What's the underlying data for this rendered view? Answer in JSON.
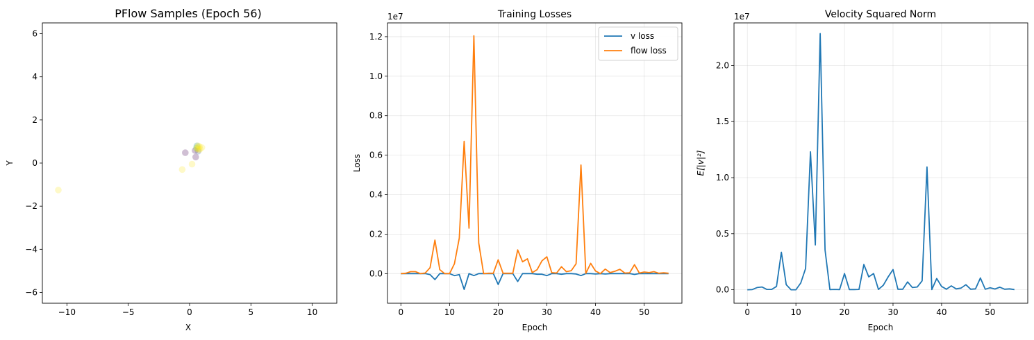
{
  "chart_data": [
    {
      "type": "scatter",
      "title": "PFlow Samples (Epoch 56)",
      "xlabel": "X",
      "ylabel": "Y",
      "xlim": [
        -12,
        12
      ],
      "ylim": [
        -6.5,
        6.5
      ],
      "xticks": [
        -10,
        -5,
        0,
        5,
        10
      ],
      "yticks": [
        -6,
        -4,
        -2,
        0,
        2,
        4,
        6
      ],
      "grid": false,
      "points": [
        {
          "x": -10.7,
          "y": -1.25,
          "color": "#fde725"
        },
        {
          "x": -0.6,
          "y": -0.3,
          "color": "#fde725"
        },
        {
          "x": 0.2,
          "y": -0.05,
          "color": "#fde725"
        },
        {
          "x": -0.35,
          "y": 0.48,
          "color": "#440154"
        },
        {
          "x": 0.5,
          "y": 0.28,
          "color": "#440154"
        },
        {
          "x": 0.45,
          "y": 0.58,
          "color": "#440154"
        },
        {
          "x": 0.6,
          "y": 0.8,
          "color": "#21918c"
        },
        {
          "x": 0.7,
          "y": 0.55,
          "color": "#3b528b"
        },
        {
          "x": 0.55,
          "y": 0.7,
          "color": "#5ec962"
        },
        {
          "x": 0.85,
          "y": 0.65,
          "color": "#fde725"
        },
        {
          "x": 0.65,
          "y": 0.72,
          "color": "#fde725"
        },
        {
          "x": 0.75,
          "y": 0.62,
          "color": "#fde725"
        },
        {
          "x": 0.6,
          "y": 0.66,
          "color": "#fde725"
        },
        {
          "x": 0.8,
          "y": 0.76,
          "color": "#fde725"
        },
        {
          "x": 1.0,
          "y": 0.72,
          "color": "#fde725"
        },
        {
          "x": 0.7,
          "y": 0.8,
          "color": "#fde725"
        }
      ]
    },
    {
      "type": "line",
      "title": "Training Losses",
      "xlabel": "Epoch",
      "ylabel": "Loss",
      "scale_label": "1e7",
      "xlim": [
        -2.75,
        57.75
      ],
      "ylim": [
        -0.15,
        1.27
      ],
      "xticks": [
        0,
        10,
        20,
        30,
        40,
        50
      ],
      "yticks": [
        0.0,
        0.2,
        0.4,
        0.6,
        0.8,
        1.0,
        1.2
      ],
      "ytick_labels": [
        "0.0",
        "0.2",
        "0.4",
        "0.6",
        "0.8",
        "1.0",
        "1.2"
      ],
      "grid": true,
      "legend": "top-right",
      "series": [
        {
          "name": "v loss",
          "color": "#1f77b4",
          "values": [
            0,
            0,
            0,
            0,
            0,
            0,
            -0.005,
            -0.03,
            0,
            0,
            0,
            -0.01,
            -0.005,
            -0.08,
            0,
            -0.01,
            0,
            0,
            0,
            0,
            -0.055,
            0,
            0,
            0,
            -0.04,
            0,
            0,
            0,
            -0.003,
            -0.003,
            -0.01,
            0,
            0,
            -0.003,
            0,
            0,
            -0.002,
            -0.01,
            0,
            0,
            -0.002,
            0,
            -0.002,
            0,
            0,
            0,
            0,
            0,
            -0.004,
            0,
            0,
            0,
            0,
            0,
            0,
            0
          ]
        },
        {
          "name": "flow loss",
          "color": "#ff7f0e",
          "values": [
            0,
            0.002,
            0.01,
            0.01,
            0,
            0.003,
            0.03,
            0.17,
            0.02,
            0,
            0,
            0.05,
            0.18,
            0.67,
            0.23,
            1.205,
            0.155,
            0,
            0.002,
            0.002,
            0.07,
            0.002,
            0.002,
            0.002,
            0.12,
            0.06,
            0.075,
            0.005,
            0.02,
            0.065,
            0.085,
            0.005,
            0.003,
            0.035,
            0.01,
            0.015,
            0.05,
            0.55,
            0.001,
            0.052,
            0.013,
            0,
            0.023,
            0.005,
            0.012,
            0.022,
            0.003,
            0.004,
            0.045,
            0.003,
            0.008,
            0.005,
            0.01,
            0.002,
            0.004,
            0.002
          ]
        }
      ]
    },
    {
      "type": "line",
      "title": "Velocity Squared Norm",
      "xlabel": "Epoch",
      "ylabel": "E[|v|²]",
      "scale_label": "1e7",
      "xlim": [
        -2.75,
        57.75
      ],
      "ylim": [
        -0.12,
        2.38
      ],
      "xticks": [
        0,
        10,
        20,
        30,
        40,
        50
      ],
      "yticks": [
        0.0,
        0.5,
        1.0,
        1.5,
        2.0
      ],
      "ytick_labels": [
        "0.0",
        "0.5",
        "1.0",
        "1.5",
        "2.0"
      ],
      "grid": true,
      "series": [
        {
          "name": "",
          "color": "#1f77b4",
          "values": [
            0,
            0.002,
            0.02,
            0.025,
            0.003,
            0.003,
            0.03,
            0.335,
            0.045,
            0,
            0,
            0.06,
            0.19,
            1.23,
            0.4,
            2.285,
            0.355,
            0.002,
            0.003,
            0.002,
            0.145,
            0.002,
            0.002,
            0.003,
            0.225,
            0.115,
            0.145,
            0.003,
            0.04,
            0.115,
            0.18,
            0.005,
            0.005,
            0.07,
            0.02,
            0.025,
            0.08,
            1.095,
            0.002,
            0.1,
            0.03,
            0.005,
            0.035,
            0.008,
            0.015,
            0.045,
            0.005,
            0.008,
            0.105,
            0.005,
            0.018,
            0.007,
            0.023,
            0.005,
            0.008,
            0.002
          ]
        }
      ]
    }
  ]
}
